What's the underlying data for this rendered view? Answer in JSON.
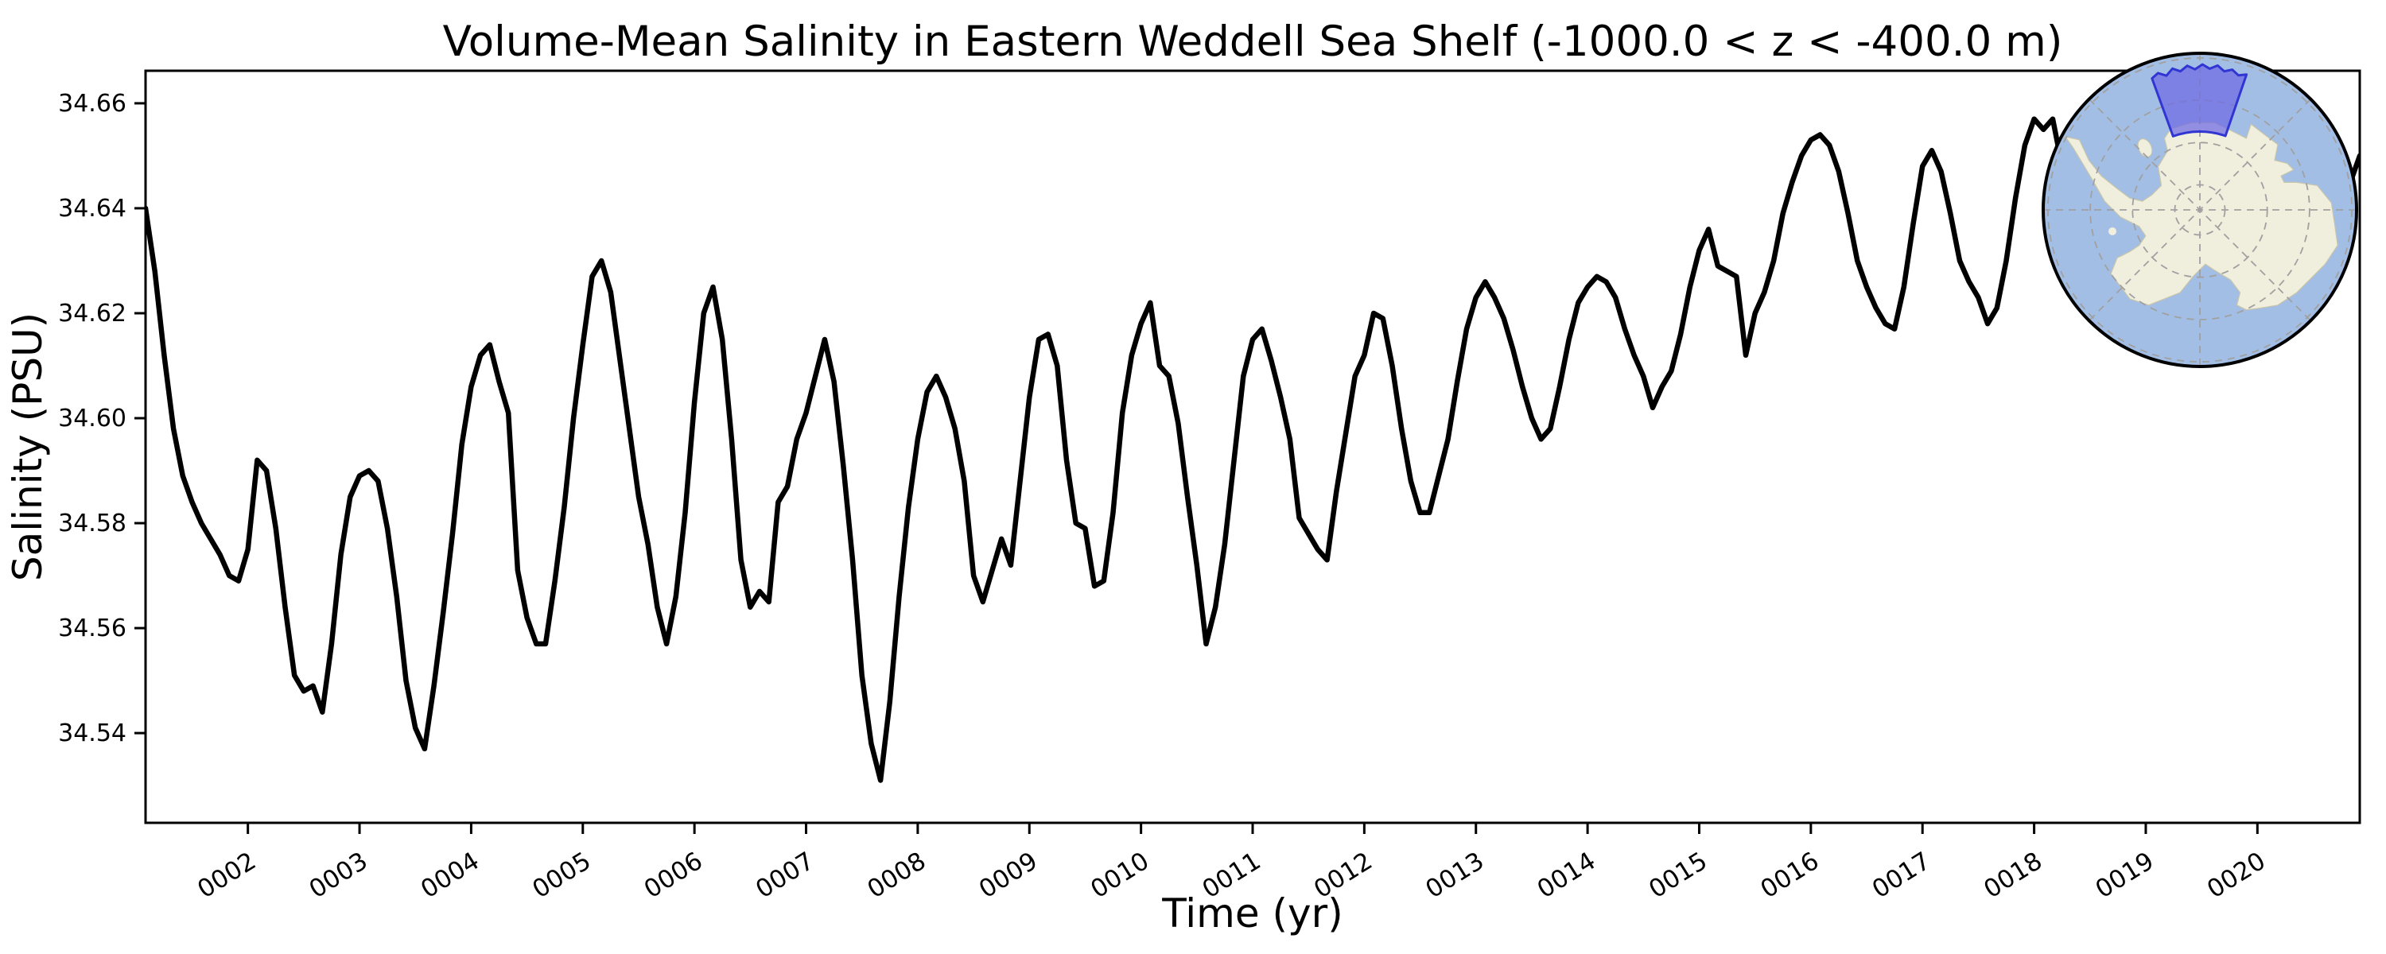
{
  "figure": {
    "title": "Volume-Mean Salinity in Eastern Weddell Sea Shelf (-1000.0 < z < -400.0 m)",
    "background_color": "#ffffff"
  },
  "x_axis": {
    "label": "Time (yr)",
    "tick_labels": [
      "0002",
      "0003",
      "0004",
      "0005",
      "0006",
      "0007",
      "0008",
      "0009",
      "0010",
      "0011",
      "0012",
      "0013",
      "0014",
      "0015",
      "0016",
      "0017",
      "0018",
      "0019",
      "0020"
    ],
    "tick_rotation_deg": 32
  },
  "y_axis": {
    "label": "Salinity (PSU)",
    "tick_labels": [
      "34.66",
      "34.64",
      "34.62",
      "34.60",
      "34.58",
      "34.56",
      "34.54"
    ]
  },
  "chart_data": {
    "type": "line",
    "title": "Volume-Mean Salinity in Eastern Weddell Sea Shelf (-1000.0 < z < -400.0 m)",
    "xlabel": "Time (yr)",
    "ylabel": "Salinity (PSU)",
    "series_name": "volume-mean salinity",
    "line_color": "#000000",
    "line_width": 6.5,
    "grid": false,
    "legend": "none",
    "xlim": [
      1.0833,
      20.9167
    ],
    "ylim": [
      34.5229,
      34.6662
    ],
    "x_start_year": 1.0833,
    "x_step_years": 0.08333,
    "x_unit": "model year (monthly samples)",
    "values": [
      34.64,
      34.628,
      34.612,
      34.598,
      34.589,
      34.584,
      34.58,
      34.577,
      34.574,
      34.57,
      34.569,
      34.575,
      34.592,
      34.59,
      34.579,
      34.564,
      34.551,
      34.548,
      34.549,
      34.544,
      34.557,
      34.574,
      34.585,
      34.589,
      34.59,
      34.588,
      34.579,
      34.566,
      34.55,
      34.541,
      34.537,
      34.549,
      34.563,
      34.578,
      34.595,
      34.606,
      34.612,
      34.614,
      34.607,
      34.601,
      34.571,
      34.562,
      34.557,
      34.557,
      34.569,
      34.583,
      34.6,
      34.614,
      34.627,
      34.63,
      34.624,
      34.611,
      34.598,
      34.585,
      34.576,
      34.564,
      34.557,
      34.566,
      34.582,
      34.603,
      34.62,
      34.625,
      34.615,
      34.596,
      34.573,
      34.564,
      34.567,
      34.565,
      34.584,
      34.587,
      34.596,
      34.601,
      34.608,
      34.615,
      34.607,
      34.591,
      34.573,
      34.551,
      34.538,
      34.531,
      34.546,
      34.566,
      34.583,
      34.596,
      34.605,
      34.608,
      34.604,
      34.598,
      34.588,
      34.57,
      34.565,
      34.571,
      34.577,
      34.572,
      34.588,
      34.604,
      34.615,
      34.616,
      34.61,
      34.592,
      34.58,
      34.579,
      34.568,
      34.569,
      34.582,
      34.601,
      34.612,
      34.618,
      34.622,
      34.61,
      34.608,
      34.599,
      34.585,
      34.572,
      34.557,
      34.564,
      34.576,
      34.592,
      34.608,
      34.615,
      34.617,
      34.611,
      34.604,
      34.596,
      34.581,
      34.578,
      34.575,
      34.573,
      34.586,
      34.597,
      34.608,
      34.612,
      34.62,
      34.619,
      34.61,
      34.598,
      34.588,
      34.582,
      34.582,
      34.589,
      34.596,
      34.607,
      34.617,
      34.623,
      34.626,
      34.623,
      34.619,
      34.613,
      34.606,
      34.6,
      34.596,
      34.598,
      34.606,
      34.615,
      34.622,
      34.625,
      34.627,
      34.626,
      34.623,
      34.617,
      34.612,
      34.608,
      34.602,
      34.606,
      34.609,
      34.616,
      34.625,
      34.632,
      34.636,
      34.629,
      34.628,
      34.627,
      34.612,
      34.62,
      34.624,
      34.63,
      34.639,
      34.645,
      34.65,
      34.653,
      34.654,
      34.652,
      34.647,
      34.639,
      34.63,
      34.625,
      34.621,
      34.618,
      34.617,
      34.625,
      34.637,
      34.648,
      34.651,
      34.647,
      34.639,
      34.63,
      34.626,
      34.623,
      34.618,
      34.621,
      34.63,
      34.642,
      34.652,
      34.657,
      34.655,
      34.657,
      34.648,
      34.641,
      34.636,
      34.632,
      34.629,
      34.627,
      34.63,
      34.637,
      34.645,
      34.652,
      34.656,
      34.658,
      34.653,
      34.646,
      34.64,
      34.635,
      34.63,
      34.628,
      34.632,
      34.639,
      34.646,
      34.652,
      34.656,
      34.657,
      34.652,
      34.646,
      34.641,
      34.637,
      34.633,
      34.635,
      34.64,
      34.645,
      34.65
    ],
    "annotations": [],
    "inset_map": {
      "description": "South polar stereographic map of Antarctica with highlighted region",
      "highlight_region_name": "Eastern Weddell Sea Shelf",
      "position": "top-right",
      "ocean_color": "#a3bee5",
      "land_color": "#f0eedd",
      "coast_color": "#c8c5aa",
      "graticule_color": "#a0a0a0",
      "rim_color": "#000000",
      "region_fill_color": "rgba(110,106,226,0.72)",
      "region_edge_color": "#3136d2"
    }
  }
}
